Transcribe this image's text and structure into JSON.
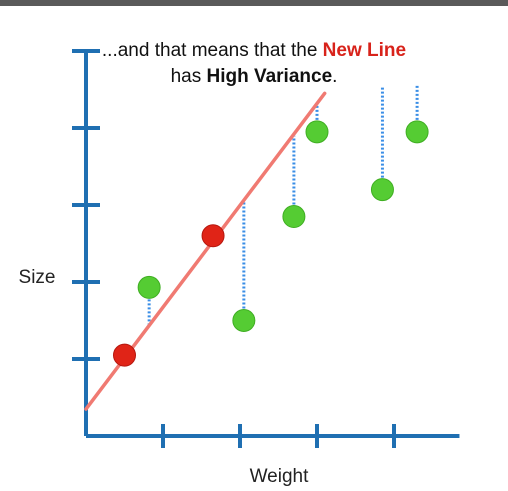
{
  "title": {
    "line1_prefix": "...and that means that the ",
    "line1_highlight": "New Line",
    "line2_prefix": "has ",
    "line2_bold": "High Variance",
    "line2_suffix": "."
  },
  "chart_data": {
    "type": "scatter",
    "title": "...and that means that the New Line has High Variance.",
    "xlabel": "Weight",
    "ylabel": "Size",
    "xlim": [
      0,
      6
    ],
    "ylim": [
      0,
      5
    ],
    "x_ticks": [
      1,
      2,
      3,
      4
    ],
    "y_ticks": [
      1,
      2,
      3,
      4
    ],
    "grid": false,
    "series": [
      {
        "points": [
          {
            "x": 0.5,
            "y": 1.05
          },
          {
            "x": 1.65,
            "y": 2.6
          }
        ],
        "color": "#e02417"
      },
      {
        "points": [
          {
            "x": 0.82,
            "y": 1.93
          },
          {
            "x": 2.05,
            "y": 1.5
          },
          {
            "x": 2.7,
            "y": 2.85
          },
          {
            "x": 3.0,
            "y": 3.95
          },
          {
            "x": 3.85,
            "y": 3.2
          },
          {
            "x": 4.3,
            "y": 3.95
          }
        ],
        "color": "#55cc33"
      }
    ],
    "fitted_line": {
      "color": "#f07a72",
      "points": [
        [
          0,
          0.35
        ],
        [
          3.1,
          4.45
        ]
      ]
    },
    "residual_color": "#3a8ee6",
    "residual_pairs": [
      {
        "x": 0.82,
        "y_data": 1.93,
        "y_line": 1.43
      },
      {
        "x": 2.05,
        "y_data": 1.5,
        "y_line": 3.05
      },
      {
        "x": 2.7,
        "y_data": 2.85,
        "y_line": 3.9
      },
      {
        "x": 3.0,
        "y_data": 3.95,
        "y_line": 4.3
      },
      {
        "x": 3.85,
        "y_data": 3.2,
        "y_line": 4.55
      },
      {
        "x": 4.3,
        "y_data": 3.95,
        "y_line": 4.55
      }
    ],
    "axis_color": "#1f6fb2"
  }
}
